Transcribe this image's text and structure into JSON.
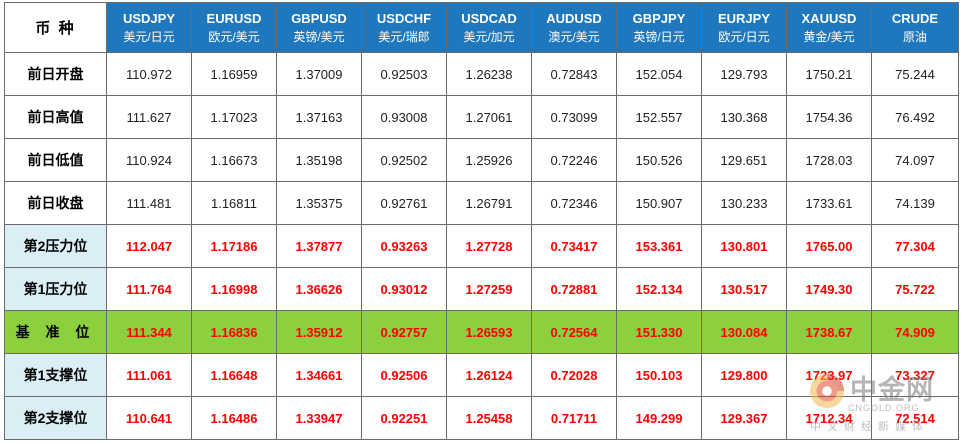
{
  "table": {
    "corner": "币 种",
    "columns": [
      {
        "symbol": "USDJPY",
        "pair": "美元/日元"
      },
      {
        "symbol": "EURUSD",
        "pair": "欧元/美元"
      },
      {
        "symbol": "GBPUSD",
        "pair": "英镑/美元"
      },
      {
        "symbol": "USDCHF",
        "pair": "美元/瑞郎"
      },
      {
        "symbol": "USDCAD",
        "pair": "美元/加元"
      },
      {
        "symbol": "AUDUSD",
        "pair": "澳元/美元"
      },
      {
        "symbol": "GBPJPY",
        "pair": "英镑/日元"
      },
      {
        "symbol": "EURJPY",
        "pair": "欧元/日元"
      },
      {
        "symbol": "XAUUSD",
        "pair": "黄金/美元"
      },
      {
        "symbol": "CRUDE",
        "pair": "原油"
      }
    ],
    "rows": [
      {
        "label": "前日开盘",
        "values": [
          "110.972",
          "1.16959",
          "1.37009",
          "0.92503",
          "1.26238",
          "0.72843",
          "152.054",
          "129.793",
          "1750.21",
          "75.244"
        ]
      },
      {
        "label": "前日高值",
        "values": [
          "111.627",
          "1.17023",
          "1.37163",
          "0.93008",
          "1.27061",
          "0.73099",
          "152.557",
          "130.368",
          "1754.36",
          "76.492"
        ]
      },
      {
        "label": "前日低值",
        "values": [
          "110.924",
          "1.16673",
          "1.35198",
          "0.92502",
          "1.25926",
          "0.72246",
          "150.526",
          "129.651",
          "1728.03",
          "74.097"
        ]
      },
      {
        "label": "前日收盘",
        "values": [
          "111.481",
          "1.16811",
          "1.35375",
          "0.92761",
          "1.26791",
          "0.72346",
          "150.907",
          "130.233",
          "1733.61",
          "74.139"
        ]
      },
      {
        "label": "第2压力位",
        "values": [
          "112.047",
          "1.17186",
          "1.37877",
          "0.93263",
          "1.27728",
          "0.73417",
          "153.361",
          "130.801",
          "1765.00",
          "77.304"
        ]
      },
      {
        "label": "第1压力位",
        "values": [
          "111.764",
          "1.16998",
          "1.36626",
          "0.93012",
          "1.27259",
          "0.72881",
          "152.134",
          "130.517",
          "1749.30",
          "75.722"
        ]
      },
      {
        "label": "基 准 位",
        "values": [
          "111.344",
          "1.16836",
          "1.35912",
          "0.92757",
          "1.26593",
          "0.72564",
          "151.330",
          "130.084",
          "1738.67",
          "74.909"
        ]
      },
      {
        "label": "第1支撑位",
        "values": [
          "111.061",
          "1.16648",
          "1.34661",
          "0.92506",
          "1.26124",
          "0.72028",
          "150.103",
          "129.800",
          "1723.97",
          "73.327"
        ]
      },
      {
        "label": "第2支撑位",
        "values": [
          "110.641",
          "1.16486",
          "1.33947",
          "0.92251",
          "1.25458",
          "0.71711",
          "149.299",
          "129.367",
          "1712.34",
          "72.514"
        ]
      }
    ]
  },
  "watermark": {
    "name": "中金网",
    "url": "CNGOLD.ORG",
    "tagline": "中文财经新媒体",
    "logo_icon": "cngold-logo-icon"
  },
  "colors": {
    "header_bg": "#1f78bd",
    "level_value": "#ff0000",
    "base_row_bg": "#8ccf3f",
    "level_label_bg": "#dbeef5"
  }
}
